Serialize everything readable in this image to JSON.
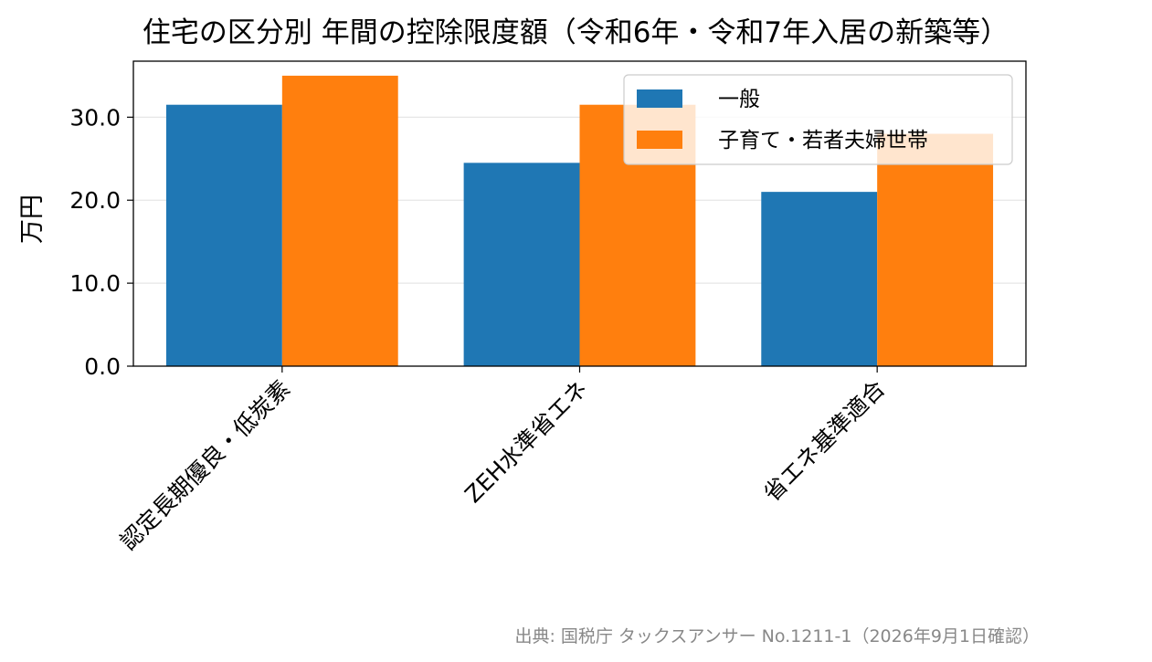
{
  "chart_data": {
    "type": "bar",
    "title": "住宅の区分別 年間の控除限度額（令和6年・令和7年入居の新築等）",
    "xlabel": "",
    "ylabel": "万円",
    "categories": [
      "認定長期優良・低炭素",
      "ZEH水準省エネ",
      "省エネ基準適合"
    ],
    "series": [
      {
        "name": "一般",
        "values": [
          31.5,
          24.5,
          21.0
        ],
        "color": "#1f77b4"
      },
      {
        "name": "子育て・若者夫婦世帯",
        "values": [
          35.0,
          31.5,
          28.0
        ],
        "color": "#ff7f0e"
      }
    ],
    "ylim": [
      0,
      36.75
    ],
    "yticks": [
      0,
      10,
      20,
      30
    ],
    "ytick_labels": [
      "0.0",
      "10.0",
      "20.0",
      "30.0"
    ],
    "grid": "horizontal",
    "legend_position": "top-right"
  },
  "source_note": "出典: 国税庁 タックスアンサー No.1211-1（2026年9月1日確認）"
}
